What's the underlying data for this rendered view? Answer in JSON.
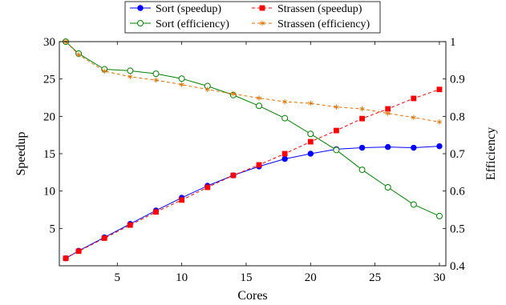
{
  "chart_data": {
    "type": "line",
    "xlabel": "Cores",
    "ylabel_left": "Speedup",
    "ylabel_right": "Efficiency",
    "xlim": [
      0.5,
      30.5
    ],
    "ylim_left": [
      0,
      30
    ],
    "ylim_right": [
      0.4,
      1.0
    ],
    "x_ticks": [
      5,
      10,
      15,
      20,
      25,
      30
    ],
    "y_ticks_left": [
      5,
      10,
      15,
      20,
      25,
      30
    ],
    "y_ticks_right": [
      0.4,
      0.5,
      0.6,
      0.7,
      0.8,
      0.9,
      1
    ],
    "x_tick_labels": [
      "5",
      "10",
      "15",
      "20",
      "25",
      "30"
    ],
    "y_tick_labels_left": [
      "5",
      "10",
      "15",
      "20",
      "25",
      "30"
    ],
    "y_tick_labels_right": [
      "0.4",
      "0.5",
      "0.6",
      "0.7",
      "0.8",
      "0.9",
      "1"
    ],
    "grid": false,
    "legend_position": "top-center",
    "series": [
      {
        "name": "Sort (speedup)",
        "axis": "left",
        "color": "#0000ff",
        "line": "solid",
        "marker": "filled-circle",
        "x": [
          1,
          2,
          4,
          6,
          8,
          10,
          12,
          14,
          16,
          18,
          20,
          22,
          24,
          26,
          28,
          30
        ],
        "y": [
          1.0,
          2.0,
          3.8,
          5.6,
          7.4,
          9.1,
          10.7,
          12.1,
          13.3,
          14.3,
          15.0,
          15.6,
          15.8,
          15.9,
          15.8,
          16.0
        ]
      },
      {
        "name": "Strassen (speedup)",
        "axis": "left",
        "color": "#ff0000",
        "line": "dashed",
        "marker": "filled-square",
        "x": [
          1,
          2,
          4,
          6,
          8,
          10,
          12,
          14,
          16,
          18,
          20,
          22,
          24,
          26,
          28,
          30
        ],
        "y": [
          1.0,
          1.95,
          3.7,
          5.45,
          7.2,
          8.8,
          10.5,
          12.1,
          13.5,
          15.0,
          16.6,
          18.1,
          19.7,
          21.0,
          22.4,
          23.6
        ]
      },
      {
        "name": "Sort (efficiency)",
        "axis": "right",
        "color": "#008000",
        "line": "solid",
        "marker": "open-circle",
        "x": [
          1,
          2,
          4,
          6,
          8,
          10,
          12,
          14,
          16,
          18,
          20,
          22,
          24,
          26,
          28,
          30
        ],
        "y": [
          1.0,
          0.968,
          0.926,
          0.922,
          0.914,
          0.901,
          0.881,
          0.857,
          0.828,
          0.795,
          0.753,
          0.71,
          0.657,
          0.61,
          0.564,
          0.533
        ]
      },
      {
        "name": "Strassen (efficiency)",
        "axis": "right",
        "color": "#e07000",
        "line": "dashed",
        "marker": "star",
        "x": [
          1,
          2,
          4,
          6,
          8,
          10,
          12,
          14,
          16,
          18,
          20,
          22,
          24,
          26,
          28,
          30
        ],
        "y": [
          1.0,
          0.965,
          0.921,
          0.906,
          0.897,
          0.885,
          0.872,
          0.86,
          0.849,
          0.839,
          0.835,
          0.825,
          0.82,
          0.808,
          0.797,
          0.785
        ]
      }
    ]
  }
}
